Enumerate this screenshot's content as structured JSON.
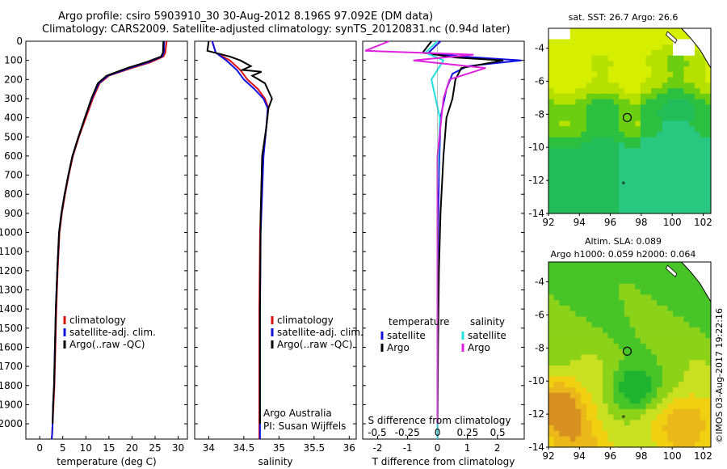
{
  "header": {
    "line1": "Argo profile: csiro 5903910_30 30-Aug-2012 8.196S 97.092E (DM data)",
    "line2": "Climatology: CARS2009. Satellite-adjusted climatology: synTS_20120831.nc (0.94d later)"
  },
  "credit": "©IMOS 03-Aug-2017 19:22:16",
  "colors": {
    "climatology": "#e01010",
    "satellite": "#1010e0",
    "argo": "#000000",
    "sal_satellite": "#20e0e0",
    "sal_argo": "#e020e0"
  },
  "chart_data": [
    {
      "type": "line",
      "name": "temperature-profile",
      "xlabel": "temperature (deg C)",
      "ylabel": "",
      "xlim": [
        -3,
        32
      ],
      "ylim": [
        2080,
        0
      ],
      "xticks": [
        0,
        5,
        10,
        15,
        20,
        25,
        30
      ],
      "yticks": [
        0,
        100,
        200,
        300,
        400,
        500,
        600,
        700,
        800,
        900,
        1000,
        1100,
        1200,
        1300,
        1400,
        1500,
        1600,
        1700,
        1800,
        1900,
        2000
      ],
      "legend": [
        "climatology",
        "satellite-adj. clim.",
        "Argo(..raw -QC)"
      ],
      "series": [
        {
          "name": "climatology",
          "color_key": "climatology",
          "x": [
            27.5,
            27.2,
            26.8,
            24.0,
            20.0,
            15.0,
            13.0,
            11.5,
            10.0,
            8.5,
            7.2,
            6.3,
            5.5,
            4.8,
            4.3,
            3.9,
            3.6,
            3.4,
            3.2,
            3.0,
            2.8,
            2.7,
            2.6
          ],
          "y": [
            0,
            60,
            80,
            110,
            140,
            180,
            220,
            300,
            400,
            500,
            600,
            700,
            800,
            900,
            1000,
            1200,
            1400,
            1600,
            1800,
            1900,
            2000,
            2050,
            2080
          ]
        },
        {
          "name": "satellite-adj. clim.",
          "color_key": "satellite",
          "x": [
            27.0,
            26.9,
            26.5,
            23.5,
            19.5,
            14.8,
            12.8,
            11.3,
            9.8,
            8.4,
            7.1,
            6.2,
            5.4,
            4.7,
            4.2,
            3.8,
            3.5,
            3.3,
            3.1,
            2.9,
            2.8,
            2.7,
            2.6
          ],
          "y": [
            0,
            60,
            80,
            110,
            140,
            180,
            220,
            300,
            400,
            500,
            600,
            700,
            800,
            900,
            1000,
            1200,
            1400,
            1600,
            1800,
            1900,
            2000,
            2050,
            2080
          ]
        },
        {
          "name": "Argo",
          "color_key": "argo",
          "x": [
            26.8,
            26.7,
            26.3,
            23.0,
            19.0,
            14.5,
            12.6,
            11.2,
            9.8,
            8.4,
            7.1,
            6.2,
            5.4,
            4.7,
            4.2,
            3.8,
            3.5,
            3.3,
            3.1,
            2.9,
            2.8
          ],
          "y": [
            0,
            60,
            80,
            110,
            140,
            180,
            220,
            300,
            400,
            500,
            600,
            700,
            800,
            900,
            1000,
            1200,
            1400,
            1600,
            1800,
            1900,
            2000
          ]
        }
      ]
    },
    {
      "type": "line",
      "name": "salinity-profile",
      "xlabel": "salinity",
      "xlim": [
        33.8,
        36.1
      ],
      "ylim": [
        2080,
        0
      ],
      "xticks": [
        34,
        34.5,
        35,
        35.5,
        36
      ],
      "legend": [
        "climatology",
        "satellite-adj. clim.",
        "Argo(..raw -QC)"
      ],
      "annotations": [
        "Argo Australia",
        "PI: Susan Wijffels"
      ],
      "series": [
        {
          "name": "climatology",
          "color_key": "climatology",
          "x": [
            34.05,
            34.1,
            34.3,
            34.45,
            34.55,
            34.7,
            34.8,
            34.85,
            34.82,
            34.78,
            34.75,
            34.73,
            34.72,
            34.72,
            34.72
          ],
          "y": [
            0,
            60,
            100,
            150,
            200,
            250,
            300,
            350,
            450,
            600,
            800,
            1000,
            1400,
            1800,
            2080
          ]
        },
        {
          "name": "satellite-adj. clim.",
          "color_key": "satellite",
          "x": [
            34.05,
            34.1,
            34.25,
            34.4,
            34.5,
            34.65,
            34.78,
            34.84,
            34.82,
            34.78,
            34.76,
            34.74,
            34.73,
            34.73,
            34.73
          ],
          "y": [
            0,
            60,
            100,
            150,
            200,
            250,
            300,
            350,
            450,
            600,
            800,
            1000,
            1400,
            1800,
            2080
          ]
        },
        {
          "name": "Argo",
          "color_key": "argo",
          "x": [
            34.0,
            33.98,
            34.3,
            34.45,
            34.6,
            34.48,
            34.75,
            34.62,
            34.8,
            34.9,
            34.85,
            34.82,
            34.76,
            34.74,
            34.73,
            34.73
          ],
          "y": [
            0,
            50,
            80,
            100,
            130,
            150,
            160,
            180,
            220,
            300,
            350,
            450,
            600,
            900,
            1400,
            2000
          ]
        }
      ]
    },
    {
      "type": "line",
      "name": "difference-profile",
      "xlabel": "T difference from climatology",
      "xlabel_top": "S difference from climatology",
      "xlim": [
        -2.5,
        2.9
      ],
      "xlim_top": [
        -0.62,
        0.72
      ],
      "ylim": [
        2080,
        0
      ],
      "xticks": [
        -2,
        -1,
        0,
        1,
        2
      ],
      "xticks_top": [
        "-0.5",
        "-0.25",
        "0",
        "0.25",
        "0.5"
      ],
      "legend_temperature": {
        "title": "temperature",
        "items": [
          "satellite",
          "Argo"
        ]
      },
      "legend_salinity": {
        "title": "salinity",
        "items": [
          "satellite",
          "Argo"
        ]
      },
      "series": [
        {
          "name": "T satellite",
          "color_key": "satellite",
          "x": [
            0.1,
            -0.3,
            0.8,
            2.8,
            1.0,
            0.5,
            0.3,
            0.1,
            0.05,
            0.0,
            0.0
          ],
          "y": [
            0,
            60,
            80,
            100,
            130,
            170,
            250,
            400,
            700,
            1200,
            2080
          ]
        },
        {
          "name": "T Argo",
          "color_key": "argo",
          "x": [
            -0.2,
            -0.5,
            0.6,
            2.2,
            0.8,
            0.6,
            0.5,
            0.3,
            0.2,
            0.1,
            0.05,
            0.02,
            0.0
          ],
          "y": [
            0,
            60,
            85,
            100,
            140,
            200,
            300,
            400,
            600,
            900,
            1200,
            1600,
            2000
          ]
        },
        {
          "name": "S satellite",
          "color_key": "sal_satellite",
          "x": [
            0.0,
            -0.1,
            0.05,
            -0.05,
            0.02,
            0.0,
            0.0
          ],
          "y": [
            0,
            60,
            100,
            200,
            400,
            800,
            2080
          ]
        },
        {
          "name": "S Argo",
          "color_key": "sal_argo",
          "x": [
            -0.4,
            -0.6,
            0.3,
            -0.2,
            0.4,
            0.1,
            0.05,
            0.0,
            0.0
          ],
          "y": [
            0,
            50,
            70,
            100,
            140,
            200,
            300,
            600,
            2000
          ]
        }
      ]
    },
    {
      "type": "heatmap",
      "name": "sst-map",
      "title": "sat. SST: 26.7 Argo: 26.6",
      "xlim": [
        92,
        102.5
      ],
      "ylim": [
        -14,
        -2.8
      ],
      "xticks": [
        92,
        94,
        96,
        98,
        100,
        102
      ],
      "yticks": [
        -4,
        -6,
        -8,
        -10,
        -12,
        -14
      ],
      "marker": {
        "lon": 97.092,
        "lat": -8.196
      }
    },
    {
      "type": "heatmap",
      "name": "sla-map",
      "title": "Altim. SLA: 0.089",
      "subtitle": "Argo h1000: 0.059 h2000: 0.064",
      "xlim": [
        92,
        102.5
      ],
      "ylim": [
        -14,
        -2.8
      ],
      "xticks": [
        92,
        94,
        96,
        98,
        100,
        102
      ],
      "yticks": [
        -4,
        -6,
        -8,
        -10,
        -12,
        -14
      ],
      "marker": {
        "lon": 97.092,
        "lat": -8.196
      }
    }
  ]
}
